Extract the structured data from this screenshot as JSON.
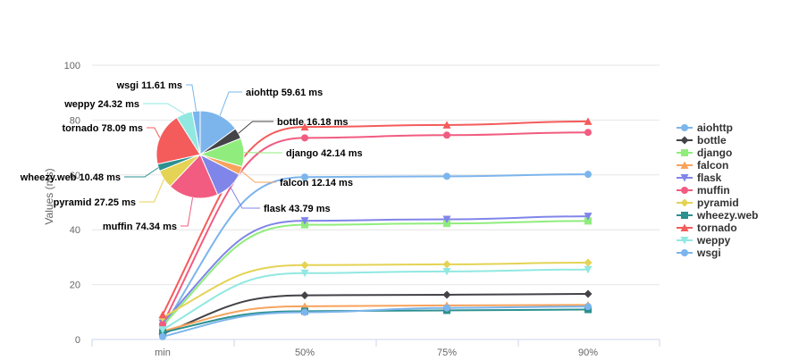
{
  "chart_data": {
    "type": "line",
    "categories": [
      "min",
      "50%",
      "75%",
      "90%"
    ],
    "ylabel": "Values (ms)",
    "ylim": [
      0,
      100
    ],
    "y_ticks": [
      0,
      20,
      40,
      60,
      80,
      100
    ],
    "grid": true,
    "legend_position": "right",
    "series": [
      {
        "name": "aiohttp",
        "color": "#7cb5ec",
        "marker": "circle",
        "values": [
          4,
          59.2,
          59.5,
          60.2
        ]
      },
      {
        "name": "bottle",
        "color": "#434348",
        "marker": "diamond",
        "values": [
          2,
          16.1,
          16.3,
          16.6
        ]
      },
      {
        "name": "django",
        "color": "#90ed7d",
        "marker": "square",
        "values": [
          5,
          41.8,
          42.3,
          43.2
        ]
      },
      {
        "name": "falcon",
        "color": "#f7a35c",
        "marker": "triangle",
        "values": [
          3,
          12.1,
          12.4,
          12.6
        ]
      },
      {
        "name": "flask",
        "color": "#8085e9",
        "marker": "triangle-down",
        "values": [
          6,
          43.3,
          43.8,
          44.9
        ]
      },
      {
        "name": "muffin",
        "color": "#f15c80",
        "marker": "circle",
        "values": [
          5.5,
          73.5,
          74.5,
          75.5
        ]
      },
      {
        "name": "pyramid",
        "color": "#e4d354",
        "marker": "diamond",
        "values": [
          8,
          27.1,
          27.4,
          28.0
        ]
      },
      {
        "name": "wheezy.web",
        "color": "#2b908f",
        "marker": "square",
        "values": [
          2.5,
          10.3,
          10.6,
          10.9
        ]
      },
      {
        "name": "tornado",
        "color": "#f45b5b",
        "marker": "triangle",
        "values": [
          9,
          77.5,
          78.2,
          79.5
        ]
      },
      {
        "name": "weppy",
        "color": "#91e8e1",
        "marker": "triangle-down",
        "values": [
          3.5,
          24.2,
          24.8,
          25.5
        ]
      },
      {
        "name": "wsgi",
        "color": "#7cb5ec",
        "marker": "circle",
        "values": [
          1,
          9.9,
          11.5,
          12.0
        ]
      }
    ],
    "pie": {
      "type": "pie",
      "slices": [
        {
          "name": "aiohttp",
          "value": 59.61,
          "label": "aiohttp 59.61 ms",
          "color": "#7cb5ec"
        },
        {
          "name": "bottle",
          "value": 16.18,
          "label": "bottle 16.18 ms",
          "color": "#434348"
        },
        {
          "name": "django",
          "value": 42.14,
          "label": "django 42.14 ms",
          "color": "#90ed7d"
        },
        {
          "name": "falcon",
          "value": 12.14,
          "label": "falcon 12.14 ms",
          "color": "#f7a35c"
        },
        {
          "name": "flask",
          "value": 43.79,
          "label": "flask 43.79 ms",
          "color": "#8085e9"
        },
        {
          "name": "muffin",
          "value": 74.34,
          "label": "muffin 74.34 ms",
          "color": "#f15c80"
        },
        {
          "name": "pyramid",
          "value": 27.25,
          "label": "pyramid 27.25 ms",
          "color": "#e4d354"
        },
        {
          "name": "wheezy.web",
          "value": 10.48,
          "label": "wheezy.web 10.48 ms",
          "color": "#2b908f"
        },
        {
          "name": "tornado",
          "value": 78.09,
          "label": "tornado 78.09 ms",
          "color": "#f45b5b"
        },
        {
          "name": "weppy",
          "value": 24.32,
          "label": "weppy 24.32 ms",
          "color": "#91e8e1"
        },
        {
          "name": "wsgi",
          "value": 11.61,
          "label": "wsgi 11.61 ms",
          "color": "#7cb5ec"
        }
      ]
    }
  }
}
